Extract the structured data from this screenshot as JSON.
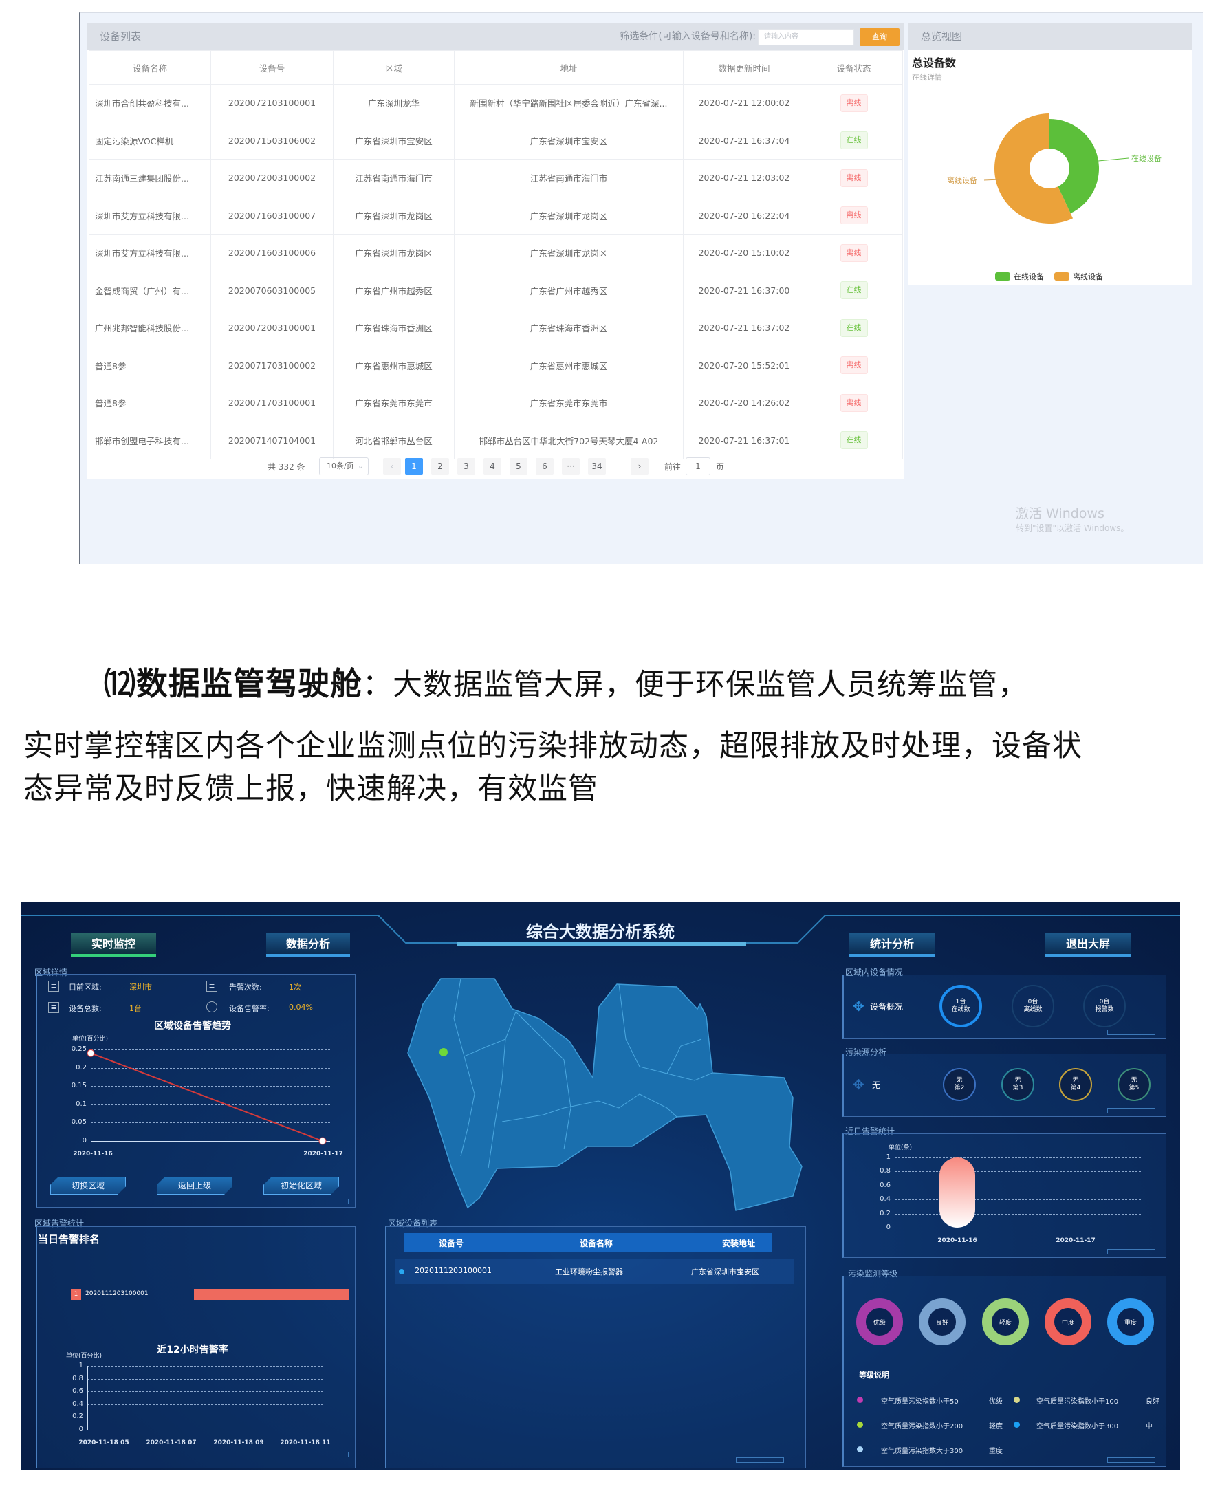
{
  "device_list": {
    "title": "设备列表",
    "filter_label": "筛选条件(可输入设备号和名称):",
    "filter_placeholder": "请输入内容",
    "query_button": "查询",
    "columns": [
      "设备名称",
      "设备号",
      "区域",
      "地址",
      "数据更新时间",
      "设备状态"
    ],
    "rows": [
      [
        "深圳市合创共盈科技有...",
        "2020072103100001",
        "广东深圳龙华",
        "新围新村（华宁路新围社区居委会附近）广东省深...",
        "2020-07-21 12:00:02",
        "离线"
      ],
      [
        "固定污染源VOC样机",
        "2020071503106002",
        "广东省深圳市宝安区",
        "广东省深圳市宝安区",
        "2020-07-21 16:37:04",
        "在线"
      ],
      [
        "江苏南通三建集团股份...",
        "2020072003100002",
        "江苏省南通市海门市",
        "江苏省南通市海门市",
        "2020-07-21 12:03:02",
        "离线"
      ],
      [
        "深圳市艾方立科技有限...",
        "2020071603100007",
        "广东省深圳市龙岗区",
        "广东省深圳市龙岗区",
        "2020-07-20 16:22:04",
        "离线"
      ],
      [
        "深圳市艾方立科技有限...",
        "2020071603100006",
        "广东省深圳市龙岗区",
        "广东省深圳市龙岗区",
        "2020-07-20 15:10:02",
        "离线"
      ],
      [
        "金智成商贸（广州）有...",
        "2020070603100005",
        "广东省广州市越秀区",
        "广东省广州市越秀区",
        "2020-07-21 16:37:00",
        "在线"
      ],
      [
        "广州兆邦智能科技股份...",
        "2020072003100001",
        "广东省珠海市香洲区",
        "广东省珠海市香洲区",
        "2020-07-21 16:37:02",
        "在线"
      ],
      [
        "普通8参",
        "2020071703100002",
        "广东省惠州市惠城区",
        "广东省惠州市惠城区",
        "2020-07-20 15:52:01",
        "离线"
      ],
      [
        "普通8参",
        "2020071703100001",
        "广东省东莞市东莞市",
        "广东省东莞市东莞市",
        "2020-07-20 14:26:02",
        "离线"
      ],
      [
        "邯郸市创盟电子科技有...",
        "2020071407104001",
        "河北省邯郸市丛台区",
        "邯郸市丛台区中华北大街702号天琴大厦4-A02",
        "2020-07-21 16:37:01",
        "在线"
      ]
    ],
    "status_online": "在线",
    "pagination": {
      "total": "共 332 条",
      "page_size": "10条/页",
      "prev": "‹",
      "pages": [
        "1",
        "2",
        "3",
        "4",
        "5",
        "6",
        "···",
        "34"
      ],
      "current": "1",
      "next": "›",
      "goto_label": "前往",
      "goto_value": "1",
      "goto_suffix": "页"
    }
  },
  "overview": {
    "title": "总览视图",
    "heading": "总设备数",
    "subheading": "在线详情",
    "chart_data": {
      "type": "pie",
      "categories": [
        "在线设备",
        "离线设备"
      ],
      "values": [
        43,
        57
      ],
      "colors": [
        "#5cbf3a",
        "#eba23a"
      ],
      "legend": "bottom"
    }
  },
  "watermark": {
    "line1": "激活 Windows",
    "line2": "转到\"设置\"以激活 Windows。"
  },
  "paragraph": {
    "heading": "⑿数据监管驾驶舱",
    "colon": "：",
    "line1": "大数据监管大屏，便于环保监管人员统筹监管，",
    "line2": "实时掌控辖区内各个企业监测点位的污染排放动态，超限排放及时处理，设备状",
    "line3": "态异常及时反馈上报，快速解决，有效监管"
  },
  "dashboard": {
    "title": "综合大数据分析系统",
    "nav": {
      "realtime": "实时监控",
      "analysis": "数据分析",
      "stats": "统计分析",
      "exit": "退出大屏"
    },
    "region_detail": {
      "title": "区域详情",
      "current_region_label": "目前区域:",
      "current_region": "深圳市",
      "alarm_count_label": "告警次数:",
      "alarm_count": "1次",
      "device_total_label": "设备总数:",
      "device_total": "1台",
      "alarm_rate_label": "设备告警率:",
      "alarm_rate": "0.04%",
      "buttons": [
        "切换区域",
        "返回上级",
        "初始化区域"
      ]
    },
    "trend_chart": {
      "type": "line",
      "title": "区域设备告警趋势",
      "ylabel": "单位(百分比)",
      "x": [
        "2020-11-16",
        "2020-11-17"
      ],
      "values": [
        0.24,
        0
      ],
      "yticks": [
        "0",
        "0.05",
        "0.1",
        "0.15",
        "0.2",
        "0.25"
      ],
      "ylim": [
        0,
        0.25
      ],
      "color": "#d43a3a"
    },
    "alarm_stats": {
      "title": "区域告警统计",
      "ranking_title": "当日告警排名",
      "ranking": [
        {
          "rank": "1",
          "device": "2020111203100001",
          "value": 1
        }
      ],
      "bar_color": "#ee6a5e"
    },
    "rate12h_chart": {
      "type": "line",
      "title": "近12小时告警率",
      "ylabel": "单位(百分比)",
      "x": [
        "2020-11-18 05",
        "2020-11-18 07",
        "2020-11-18 09",
        "2020-11-18 11"
      ],
      "yticks": [
        "0",
        "0.2",
        "0.4",
        "0.6",
        "0.8",
        "1"
      ],
      "ylim": [
        0,
        1
      ],
      "values": []
    },
    "device_table": {
      "title": "区域设备列表",
      "columns": [
        "设备号",
        "设备名称",
        "安装地址"
      ],
      "rows": [
        [
          "2020111203100001",
          "工业环境粉尘报警器",
          "广东省深圳市宝安区"
        ]
      ]
    },
    "device_status": {
      "title": "区域内设备情况",
      "label": "设备概况",
      "circles": [
        {
          "value": "1台",
          "label": "在线数"
        },
        {
          "value": "0台",
          "label": "离线数"
        },
        {
          "value": "0台",
          "label": "报警数"
        }
      ]
    },
    "pollution_source": {
      "title": "污染源分析",
      "label": "无",
      "circles": [
        {
          "value": "无",
          "label": "第2",
          "color": "#3a6fc0"
        },
        {
          "value": "无",
          "label": "第3",
          "color": "#2b8a9a"
        },
        {
          "value": "无",
          "label": "第4",
          "color": "#c9a53a"
        },
        {
          "value": "无",
          "label": "第5",
          "color": "#3d8f7a"
        }
      ]
    },
    "recent_alarm_chart": {
      "type": "bar",
      "title": "近日告警统计",
      "ylabel": "单位(条)",
      "categories": [
        "2020-11-16",
        "2020-11-17"
      ],
      "values": [
        1,
        0
      ],
      "yticks": [
        "0",
        "0.2",
        "0.4",
        "0.6",
        "0.8",
        "1"
      ],
      "ylim": [
        0,
        1
      ]
    },
    "pollution_level": {
      "title": "污染监测等级",
      "rings": [
        {
          "label": "优级",
          "color": "#a63ba8"
        },
        {
          "label": "良好",
          "color": "#7aa3d0"
        },
        {
          "label": "轻度",
          "color": "#9bd27a"
        },
        {
          "label": "中度",
          "color": "#f0615a"
        },
        {
          "label": "重度",
          "color": "#2e9bf0"
        }
      ],
      "legend_title": "等级说明",
      "legend": [
        {
          "text": "空气质量污染指数小于50",
          "level": "优级",
          "color": "#c23bb0"
        },
        {
          "text": "空气质量污染指数小于100",
          "level": "良好",
          "color": "#d8d88a"
        },
        {
          "text": "空气质量污染指数小于200",
          "level": "轻度",
          "color": "#a8d83a"
        },
        {
          "text": "空气质量污染指数小于300",
          "level": "中",
          "color": "#1aa0f5"
        },
        {
          "text": "空气质量污染指数大于300",
          "level": "重度",
          "color": "#a8d4f8"
        }
      ]
    }
  }
}
